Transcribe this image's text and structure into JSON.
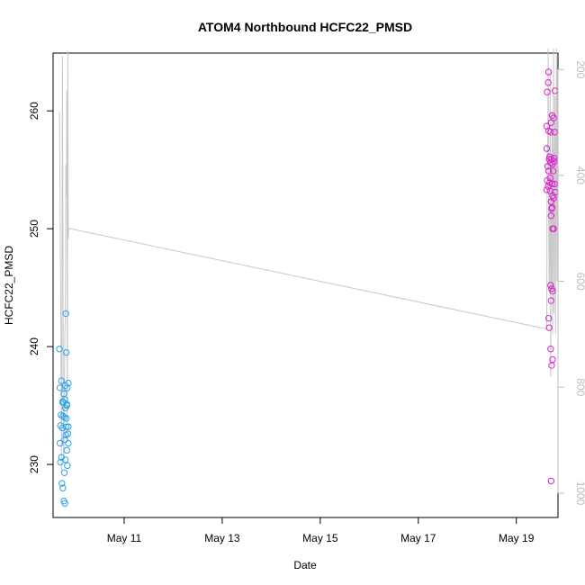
{
  "chart_data": {
    "type": "scatter",
    "title": "ATOM4 Northbound HCFC22_PMSD",
    "xlabel": "Date",
    "ylabel": "HCFC22_PMSD",
    "xlim": [
      9.55,
      19.85
    ],
    "ylim": [
      225.5,
      264.9
    ],
    "y2lim": [
      1046,
      169
    ],
    "x_ticks": [
      {
        "x": 11,
        "label": "May 11"
      },
      {
        "x": 13,
        "label": "May 13"
      },
      {
        "x": 15,
        "label": "May 15"
      },
      {
        "x": 17,
        "label": "May 17"
      },
      {
        "x": 19,
        "label": "May 19"
      }
    ],
    "y_ticks": [
      {
        "y": 230,
        "label": "230"
      },
      {
        "y": 240,
        "label": "240"
      },
      {
        "y": 250,
        "label": "250"
      },
      {
        "y": 260,
        "label": "260"
      }
    ],
    "y2_ticks": [
      {
        "y": 200,
        "label": "200"
      },
      {
        "y": 400,
        "label": "400"
      },
      {
        "y": 600,
        "label": "600"
      },
      {
        "y": 800,
        "label": "800"
      },
      {
        "y": 1000,
        "label": "1000"
      }
    ],
    "series": [
      {
        "color": "#29a3e6",
        "marker": "open-circle",
        "axis": "left",
        "points": [
          [
            9.68,
            239.8
          ],
          [
            9.72,
            237.1
          ],
          [
            9.69,
            236.5
          ],
          [
            9.74,
            235.3
          ],
          [
            9.71,
            234.2
          ],
          [
            9.7,
            233.3
          ],
          [
            9.74,
            233.1
          ],
          [
            9.69,
            231.8
          ],
          [
            9.72,
            230.6
          ],
          [
            9.7,
            230.2
          ],
          [
            9.73,
            228.4
          ],
          [
            9.75,
            228.0
          ],
          [
            9.77,
            226.9
          ],
          [
            9.79,
            226.7
          ],
          [
            9.78,
            229.3
          ],
          [
            9.8,
            230.4
          ],
          [
            9.84,
            229.9
          ],
          [
            9.83,
            231.2
          ],
          [
            9.86,
            231.8
          ],
          [
            9.81,
            232.5
          ],
          [
            9.85,
            232.6
          ],
          [
            9.79,
            232.1
          ],
          [
            9.82,
            233.2
          ],
          [
            9.86,
            233.2
          ],
          [
            9.78,
            234.0
          ],
          [
            9.82,
            233.9
          ],
          [
            9.8,
            234.8
          ],
          [
            9.83,
            235.1
          ],
          [
            9.79,
            235.5
          ],
          [
            9.77,
            236.0
          ],
          [
            9.8,
            236.7
          ],
          [
            9.84,
            236.5
          ],
          [
            9.86,
            236.9
          ],
          [
            9.82,
            239.5
          ],
          [
            9.81,
            242.8
          ],
          [
            9.76,
            235.3
          ],
          [
            9.75,
            234.1
          ],
          [
            9.83,
            235.0
          ]
        ]
      },
      {
        "color": "#dd22cc",
        "marker": "open-circle",
        "axis": "left",
        "points": [
          [
            19.62,
            258.7
          ],
          [
            19.66,
            263.3
          ],
          [
            19.65,
            262.4
          ],
          [
            19.63,
            261.6
          ],
          [
            19.62,
            256.8
          ],
          [
            19.64,
            255.3
          ],
          [
            19.63,
            254.1
          ],
          [
            19.62,
            253.3
          ],
          [
            19.65,
            253.6
          ],
          [
            19.66,
            254.9
          ],
          [
            19.67,
            255.9
          ],
          [
            19.68,
            256.1
          ],
          [
            19.66,
            258.3
          ],
          [
            19.7,
            258.2
          ],
          [
            19.71,
            259.0
          ],
          [
            19.73,
            259.6
          ],
          [
            19.76,
            259.4
          ],
          [
            19.78,
            258.2
          ],
          [
            19.79,
            261.7
          ],
          [
            19.68,
            253.9
          ],
          [
            19.69,
            254.3
          ],
          [
            19.7,
            255.6
          ],
          [
            19.72,
            255.9
          ],
          [
            19.74,
            255.5
          ],
          [
            19.77,
            255.7
          ],
          [
            19.75,
            254.9
          ],
          [
            19.73,
            253.8
          ],
          [
            19.78,
            253.8
          ],
          [
            19.79,
            253.1
          ],
          [
            19.76,
            252.6
          ],
          [
            19.74,
            252.8
          ],
          [
            19.71,
            252.3
          ],
          [
            19.73,
            251.8
          ],
          [
            19.72,
            251.7
          ],
          [
            19.71,
            251.1
          ],
          [
            19.74,
            250.0
          ],
          [
            19.76,
            250.0
          ],
          [
            19.7,
            245.2
          ],
          [
            19.72,
            244.9
          ],
          [
            19.74,
            244.7
          ],
          [
            19.71,
            243.9
          ],
          [
            19.66,
            242.4
          ],
          [
            19.67,
            241.6
          ],
          [
            19.7,
            239.8
          ],
          [
            19.72,
            238.4
          ],
          [
            19.74,
            238.9
          ],
          [
            19.71,
            228.6
          ],
          [
            19.77,
            256.0
          ],
          [
            19.69,
            253.2
          ]
        ]
      }
    ],
    "line_series": {
      "color": "#c8c8c8",
      "axis": "right",
      "points": [
        [
          9.68,
          280
        ],
        [
          9.71,
          700
        ],
        [
          9.72,
          960
        ],
        [
          9.73,
          720
        ],
        [
          9.74,
          175
        ],
        [
          9.75,
          480
        ],
        [
          9.76,
          900
        ],
        [
          9.77,
          940
        ],
        [
          9.78,
          820
        ],
        [
          9.79,
          700
        ],
        [
          9.8,
          660
        ],
        [
          9.81,
          380
        ],
        [
          9.82,
          440
        ],
        [
          9.83,
          240
        ],
        [
          9.84,
          900
        ],
        [
          9.85,
          165
        ],
        [
          9.86,
          520
        ],
        [
          9.87,
          500
        ],
        [
          19.62,
          690
        ],
        [
          19.63,
          340
        ],
        [
          19.64,
          380
        ],
        [
          19.65,
          160
        ],
        [
          19.66,
          480
        ],
        [
          19.67,
          620
        ],
        [
          19.68,
          540
        ],
        [
          19.69,
          200
        ],
        [
          19.7,
          780
        ],
        [
          19.71,
          380
        ],
        [
          19.72,
          620
        ],
        [
          19.73,
          280
        ],
        [
          19.74,
          700
        ],
        [
          19.75,
          420
        ],
        [
          19.76,
          160
        ],
        [
          19.77,
          660
        ],
        [
          19.78,
          430
        ],
        [
          19.79,
          250
        ],
        [
          19.8,
          700
        ],
        [
          19.81,
          350
        ],
        [
          19.82,
          160
        ],
        [
          19.83,
          600
        ],
        [
          19.84,
          200
        ]
      ]
    }
  }
}
